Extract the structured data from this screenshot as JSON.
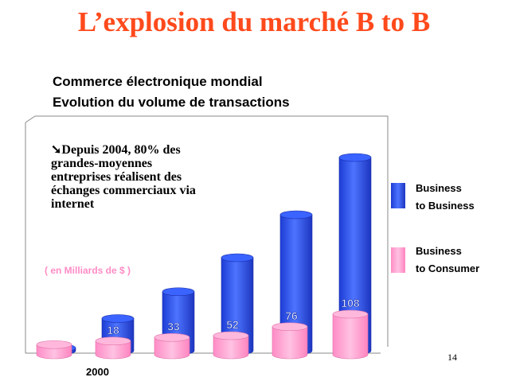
{
  "slide": {
    "title": "L’explosion du marché B to B",
    "subtitle_lines": [
      "Commerce électronique mondial",
      "Evolution du volume de transactions"
    ],
    "annotation_lines": [
      "➘Depuis 2004, 80% des",
      "grandes-moyennes",
      "entreprises réalisent des",
      "échanges commerciaux  via",
      "internet"
    ],
    "unit_note": "( en Milliards de $ )",
    "year_label": "2000",
    "page_number": "14"
  },
  "legend": {
    "items": [
      {
        "line1": "Business",
        "line2": "to Business",
        "color": "#2f55f0"
      },
      {
        "line1": "Business",
        "line2": "to Consumer",
        "color": "#ff9ecf"
      }
    ]
  },
  "chart_data": {
    "type": "bar",
    "title": "",
    "xlabel": "",
    "ylabel": "",
    "categories": [
      "2000",
      "",
      "",
      "",
      "",
      ""
    ],
    "series": [
      {
        "name": "Business to Business",
        "values": [
          null,
          18,
          33,
          52,
          76,
          108
        ],
        "color": "#2f55f0",
        "labels": [
          "",
          "18",
          "33",
          "52",
          "76",
          "108"
        ]
      },
      {
        "name": "Business to Consumer",
        "values": [
          6,
          10,
          14,
          16,
          26,
          40
        ],
        "color": "#ff9ecf"
      }
    ],
    "grid": false,
    "legend_position": "right"
  }
}
